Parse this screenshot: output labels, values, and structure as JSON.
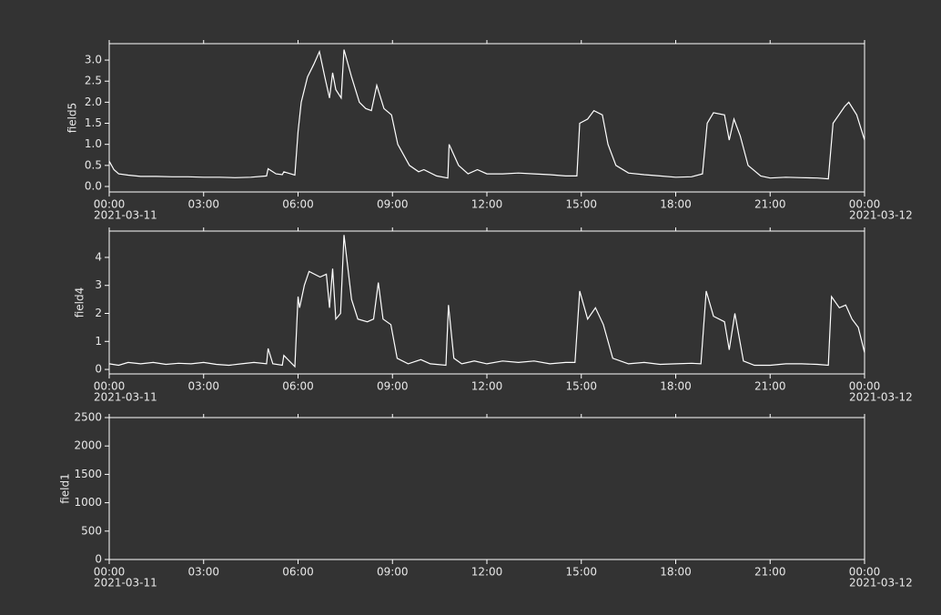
{
  "chart_data": [
    {
      "type": "line",
      "ylabel": "field5",
      "color": "#ffffff",
      "xlim": [
        0,
        24
      ],
      "ylim": [
        -0.13,
        3.39
      ],
      "yticks": [
        {
          "value": 0,
          "label": "0.0"
        },
        0.5,
        {
          "value": 1,
          "label": "1.0"
        },
        1.5,
        {
          "value": 2,
          "label": "2.0"
        },
        2.5,
        {
          "value": 3,
          "label": "3.0"
        }
      ],
      "xticks": [
        {
          "value": 0,
          "label": "00:00"
        },
        {
          "value": 3,
          "label": "03:00"
        },
        {
          "value": 6,
          "label": "06:00"
        },
        {
          "value": 9,
          "label": "09:00"
        },
        {
          "value": 12,
          "label": "12:00"
        },
        {
          "value": 15,
          "label": "15:00"
        },
        {
          "value": 18,
          "label": "18:00"
        },
        {
          "value": 21,
          "label": "21:00"
        },
        {
          "value": 24,
          "label": "00:00"
        }
      ],
      "xdates": [
        {
          "value": 0,
          "label": "2021-03-11"
        },
        {
          "value": 24,
          "label": "2021-03-12"
        }
      ],
      "x": [
        0,
        0.15,
        0.3,
        0.6,
        1,
        1.5,
        2,
        2.5,
        3,
        3.5,
        4,
        4.5,
        5,
        5.05,
        5.3,
        5.5,
        5.55,
        5.9,
        6.0,
        6.1,
        6.3,
        6.5,
        6.68,
        6.85,
        7.0,
        7.1,
        7.2,
        7.37,
        7.46,
        7.7,
        7.95,
        8.15,
        8.33,
        8.5,
        8.73,
        8.97,
        9.17,
        9.54,
        9.83,
        10.0,
        10.4,
        10.76,
        10.8,
        11.1,
        11.4,
        11.7,
        12.0,
        12.5,
        13,
        13.5,
        14,
        14.5,
        14.86,
        14.95,
        15.2,
        15.4,
        15.67,
        15.85,
        16.1,
        16.5,
        17,
        17.5,
        18,
        18.5,
        18.85,
        19.0,
        19.2,
        19.55,
        19.7,
        19.85,
        20.05,
        20.3,
        20.7,
        21,
        21.5,
        22,
        22.5,
        22.85,
        23.0,
        23.37,
        23.5,
        23.75,
        24
      ],
      "values": [
        0.6,
        0.4,
        0.3,
        0.27,
        0.24,
        0.24,
        0.23,
        0.23,
        0.22,
        0.22,
        0.21,
        0.22,
        0.25,
        0.42,
        0.3,
        0.28,
        0.35,
        0.27,
        1.3,
        2.0,
        2.6,
        2.9,
        3.2,
        2.6,
        2.1,
        2.7,
        2.3,
        2.1,
        3.25,
        2.6,
        2.0,
        1.85,
        1.8,
        2.4,
        1.85,
        1.7,
        1.0,
        0.5,
        0.35,
        0.4,
        0.25,
        0.2,
        1.0,
        0.5,
        0.3,
        0.4,
        0.3,
        0.3,
        0.32,
        0.3,
        0.28,
        0.25,
        0.25,
        1.5,
        1.6,
        1.8,
        1.7,
        1.0,
        0.5,
        0.32,
        0.28,
        0.25,
        0.22,
        0.23,
        0.3,
        1.5,
        1.75,
        1.7,
        1.1,
        1.6,
        1.2,
        0.5,
        0.25,
        0.2,
        0.22,
        0.21,
        0.2,
        0.18,
        1.5,
        1.9,
        2.0,
        1.7,
        1.1
      ]
    },
    {
      "type": "line",
      "ylabel": "field4",
      "color": "#ffffff",
      "xlim": [
        0,
        24
      ],
      "ylim": [
        -0.16,
        4.94
      ],
      "yticks": [
        0,
        1,
        2,
        3,
        4
      ],
      "xticks": [
        {
          "value": 0,
          "label": "00:00"
        },
        {
          "value": 3,
          "label": "03:00"
        },
        {
          "value": 6,
          "label": "06:00"
        },
        {
          "value": 9,
          "label": "09:00"
        },
        {
          "value": 12,
          "label": "12:00"
        },
        {
          "value": 15,
          "label": "15:00"
        },
        {
          "value": 18,
          "label": "18:00"
        },
        {
          "value": 21,
          "label": "21:00"
        },
        {
          "value": 24,
          "label": "00:00"
        }
      ],
      "xdates": [
        {
          "value": 0,
          "label": "2021-03-11"
        },
        {
          "value": 24,
          "label": "2021-03-12"
        }
      ],
      "x": [
        0,
        0.3,
        0.6,
        1,
        1.4,
        1.8,
        2.2,
        2.6,
        3,
        3.4,
        3.8,
        4.2,
        4.6,
        5.0,
        5.05,
        5.2,
        5.5,
        5.55,
        5.9,
        6.0,
        6.05,
        6.2,
        6.35,
        6.7,
        6.9,
        7.0,
        7.1,
        7.2,
        7.35,
        7.46,
        7.7,
        7.9,
        8.2,
        8.4,
        8.55,
        8.7,
        8.95,
        9.15,
        9.5,
        9.9,
        10.2,
        10.7,
        10.78,
        10.95,
        11.2,
        11.6,
        12,
        12.5,
        13,
        13.5,
        14,
        14.5,
        14.8,
        14.95,
        15.2,
        15.45,
        15.7,
        16.0,
        16.5,
        17,
        17.5,
        18,
        18.5,
        18.8,
        18.97,
        19.2,
        19.55,
        19.7,
        19.88,
        20.15,
        20.5,
        21,
        21.5,
        22,
        22.5,
        22.85,
        22.95,
        23.2,
        23.4,
        23.6,
        23.8,
        24
      ],
      "values": [
        0.2,
        0.15,
        0.25,
        0.2,
        0.25,
        0.18,
        0.22,
        0.2,
        0.25,
        0.18,
        0.15,
        0.2,
        0.25,
        0.2,
        0.75,
        0.2,
        0.15,
        0.5,
        0.1,
        2.6,
        2.2,
        3.0,
        3.5,
        3.3,
        3.4,
        2.2,
        3.6,
        1.8,
        2.0,
        4.8,
        2.5,
        1.8,
        1.7,
        1.8,
        3.1,
        1.8,
        1.6,
        0.4,
        0.2,
        0.35,
        0.2,
        0.15,
        2.3,
        0.4,
        0.2,
        0.3,
        0.2,
        0.3,
        0.25,
        0.3,
        0.2,
        0.25,
        0.25,
        2.8,
        1.8,
        2.2,
        1.6,
        0.4,
        0.2,
        0.25,
        0.18,
        0.2,
        0.22,
        0.2,
        2.8,
        1.9,
        1.7,
        0.7,
        2.0,
        0.3,
        0.15,
        0.15,
        0.2,
        0.2,
        0.18,
        0.15,
        2.6,
        2.2,
        2.3,
        1.8,
        1.5,
        0.6
      ]
    },
    {
      "type": "line",
      "ylabel": "field1",
      "color": "#ffffff",
      "xlim": [
        0,
        24
      ],
      "ylim": [
        0,
        2500
      ],
      "yticks": [
        0,
        500,
        1000,
        1500,
        2000,
        2500
      ],
      "xticks": [
        {
          "value": 0,
          "label": "00:00"
        },
        {
          "value": 3,
          "label": "03:00"
        },
        {
          "value": 6,
          "label": "06:00"
        },
        {
          "value": 9,
          "label": "09:00"
        },
        {
          "value": 12,
          "label": "12:00"
        },
        {
          "value": 15,
          "label": "15:00"
        },
        {
          "value": 18,
          "label": "18:00"
        },
        {
          "value": 21,
          "label": "21:00"
        },
        {
          "value": 24,
          "label": "00:00"
        }
      ],
      "xdates": [
        {
          "value": 0,
          "label": "2021-03-11"
        },
        {
          "value": 24,
          "label": "2021-03-12"
        }
      ],
      "x": [],
      "values": []
    }
  ]
}
